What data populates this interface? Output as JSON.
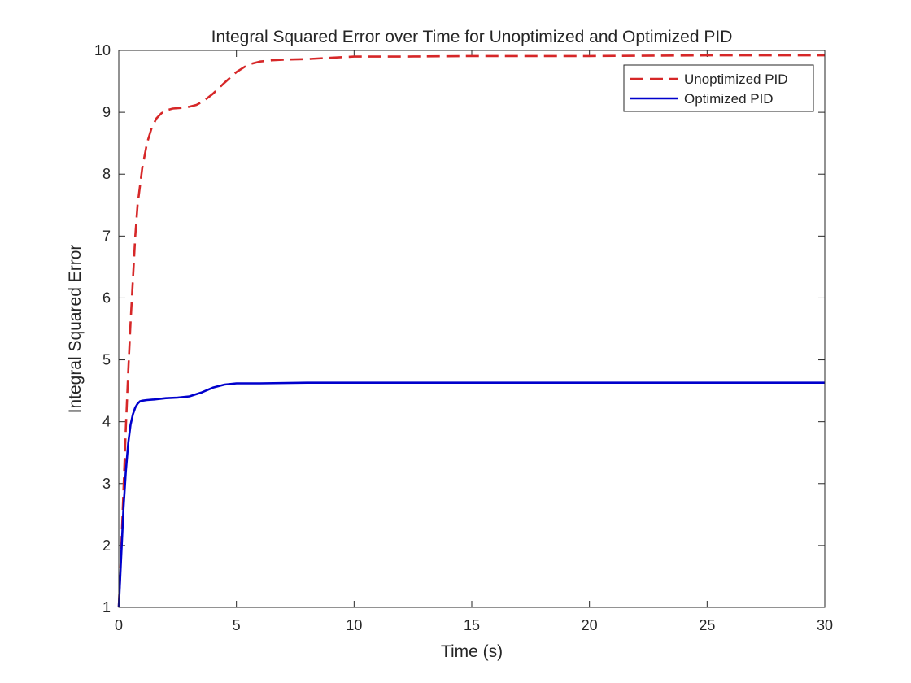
{
  "chart_data": {
    "type": "line",
    "title": "Integral Squared Error over Time for Unoptimized and Optimized PID",
    "xlabel": "Time (s)",
    "ylabel": "Integral Squared Error",
    "xlim": [
      0,
      30
    ],
    "ylim": [
      1,
      10
    ],
    "xticks": [
      0,
      5,
      10,
      15,
      20,
      25,
      30
    ],
    "yticks": [
      1,
      2,
      3,
      4,
      5,
      6,
      7,
      8,
      9,
      10
    ],
    "xtick_labels": [
      "0",
      "5",
      "10",
      "15",
      "20",
      "25",
      "30"
    ],
    "ytick_labels": [
      "1",
      "2",
      "3",
      "4",
      "5",
      "6",
      "7",
      "8",
      "9",
      "10"
    ],
    "grid": false,
    "legend_position": "top-right",
    "series": [
      {
        "name": "Unoptimized PID",
        "color": "#d62728",
        "line_style": "dashed",
        "x": [
          0,
          0.1,
          0.2,
          0.3,
          0.4,
          0.5,
          0.6,
          0.7,
          0.8,
          1.0,
          1.2,
          1.4,
          1.6,
          1.8,
          2.0,
          2.3,
          2.6,
          3.0,
          3.3,
          3.6,
          4.0,
          4.5,
          5.0,
          5.5,
          6.0,
          6.5,
          7.0,
          8.0,
          9.0,
          10.0,
          12.0,
          15.0,
          20.0,
          25.0,
          30.0
        ],
        "y": [
          1.0,
          1.9,
          2.9,
          3.9,
          4.8,
          5.6,
          6.3,
          7.0,
          7.5,
          8.1,
          8.5,
          8.75,
          8.9,
          8.98,
          9.03,
          9.06,
          9.07,
          9.09,
          9.12,
          9.18,
          9.3,
          9.48,
          9.65,
          9.77,
          9.82,
          9.84,
          9.85,
          9.86,
          9.88,
          9.9,
          9.9,
          9.91,
          9.91,
          9.92,
          9.92
        ]
      },
      {
        "name": "Optimized PID",
        "color": "#0000cc",
        "line_style": "solid",
        "x": [
          0,
          0.1,
          0.2,
          0.3,
          0.4,
          0.5,
          0.6,
          0.7,
          0.8,
          0.9,
          1.0,
          1.2,
          1.5,
          2.0,
          2.5,
          3.0,
          3.5,
          4.0,
          4.5,
          5.0,
          6.0,
          8.0,
          10.0,
          15.0,
          20.0,
          30.0
        ],
        "y": [
          1.0,
          1.8,
          2.6,
          3.2,
          3.65,
          3.95,
          4.12,
          4.23,
          4.29,
          4.33,
          4.34,
          4.35,
          4.36,
          4.38,
          4.39,
          4.41,
          4.47,
          4.55,
          4.6,
          4.62,
          4.62,
          4.63,
          4.63,
          4.63,
          4.63,
          4.63
        ]
      }
    ]
  }
}
